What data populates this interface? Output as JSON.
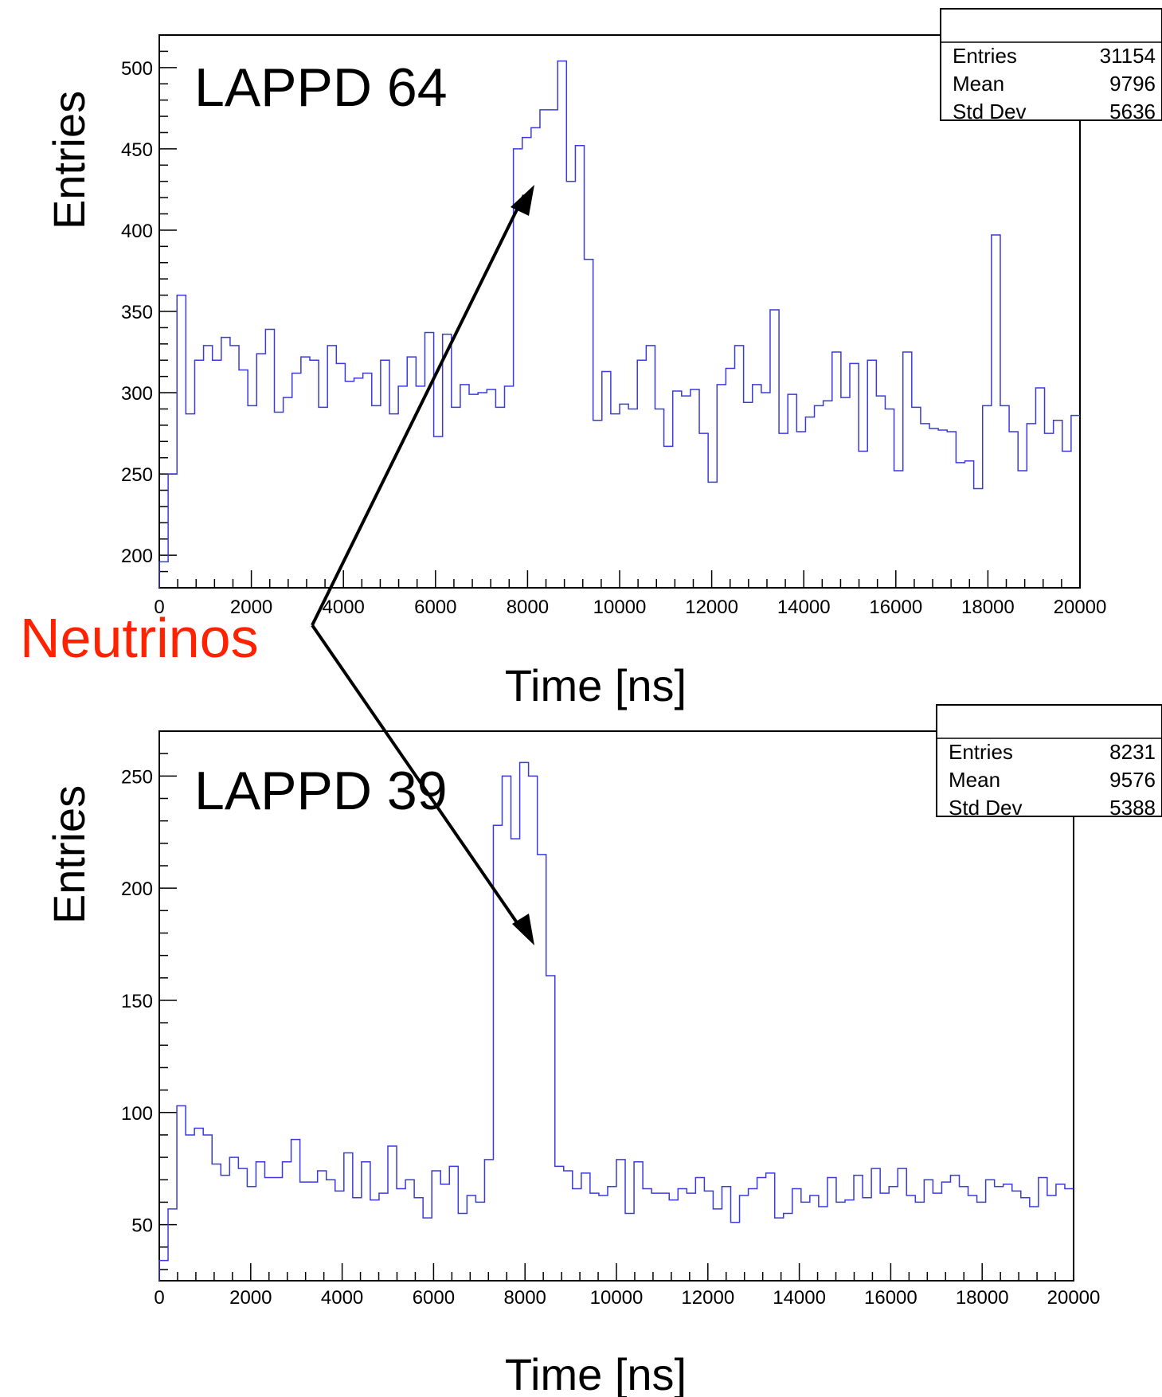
{
  "annotation": {
    "text": "Neutrinos",
    "color": "#ff2200"
  },
  "colors": {
    "histogram": "#3a3adf",
    "axis": "#000000",
    "arrow": "#000000"
  },
  "chart_data": [
    {
      "type": "bar",
      "histogram_style": "step",
      "title": "LAPPD 64",
      "xlabel": "Time [ns]",
      "ylabel": "Entries",
      "xlim": [
        0,
        20000
      ],
      "ylim": [
        180,
        520
      ],
      "x_ticks": [
        0,
        2000,
        4000,
        6000,
        8000,
        10000,
        12000,
        14000,
        16000,
        18000,
        20000
      ],
      "x_tick_labels": [
        "0",
        "2000",
        "4000",
        "6000",
        "8000",
        "10000",
        "12000",
        "14000",
        "16000",
        "18000",
        "20000"
      ],
      "y_ticks": [
        200,
        250,
        300,
        350,
        400,
        450,
        500
      ],
      "y_tick_labels": [
        "200",
        "250",
        "300",
        "350",
        "400",
        "450",
        "500"
      ],
      "bin_width": 200,
      "values": [
        196,
        250,
        360,
        287,
        320,
        329,
        320,
        334,
        329,
        314,
        292,
        324,
        339,
        288,
        297,
        312,
        322,
        320,
        291,
        329,
        318,
        307,
        309,
        312,
        292,
        320,
        287,
        304,
        322,
        304,
        337,
        273,
        336,
        291,
        305,
        299,
        300,
        302,
        291,
        304,
        450,
        457,
        463,
        474,
        474,
        504,
        430,
        452,
        382,
        283,
        313,
        287,
        293,
        290,
        320,
        329,
        290,
        267,
        301,
        298,
        302,
        275,
        245,
        305,
        315,
        329,
        294,
        305,
        300,
        351,
        275,
        299,
        276,
        285,
        292,
        295,
        325,
        297,
        318,
        264,
        320,
        298,
        290,
        252,
        325,
        291,
        281,
        278,
        277,
        276,
        257,
        258,
        241,
        292,
        397,
        292,
        276,
        252,
        281,
        303,
        275,
        283,
        264,
        286
      ],
      "stats": {
        "header": "",
        "labels": [
          "Entries",
          "Mean",
          "Std Dev"
        ],
        "values": [
          "31154",
          "9796",
          "5636"
        ]
      }
    },
    {
      "type": "bar",
      "histogram_style": "step",
      "title": "LAPPD 39",
      "xlabel": "Time [ns]",
      "ylabel": "Entries",
      "xlim": [
        0,
        20000
      ],
      "ylim": [
        25,
        270
      ],
      "x_ticks": [
        0,
        2000,
        4000,
        6000,
        8000,
        10000,
        12000,
        14000,
        16000,
        18000,
        20000
      ],
      "x_tick_labels": [
        "0",
        "2000",
        "4000",
        "6000",
        "8000",
        "10000",
        "12000",
        "14000",
        "16000",
        "18000",
        "20000"
      ],
      "y_ticks": [
        50,
        100,
        150,
        200,
        250
      ],
      "y_tick_labels": [
        "50",
        "100",
        "150",
        "200",
        "250"
      ],
      "bin_width": 200,
      "values": [
        34,
        57,
        103,
        90,
        93,
        90,
        77,
        72,
        80,
        75,
        67,
        78,
        71,
        71,
        78,
        88,
        69,
        69,
        74,
        70,
        65,
        82,
        62,
        78,
        61,
        64,
        85,
        66,
        70,
        62,
        53,
        74,
        68,
        76,
        55,
        63,
        60,
        79,
        228,
        250,
        222,
        256,
        250,
        215,
        161,
        76,
        74,
        66,
        73,
        64,
        63,
        67,
        79,
        55,
        78,
        66,
        64,
        64,
        61,
        66,
        64,
        71,
        65,
        57,
        67,
        51,
        63,
        66,
        71,
        73,
        53,
        55,
        66,
        60,
        63,
        58,
        71,
        60,
        61,
        72,
        62,
        75,
        64,
        67,
        75,
        63,
        60,
        70,
        64,
        69,
        72,
        67,
        63,
        60,
        70,
        67,
        68,
        65,
        62,
        58,
        71,
        63,
        68,
        66
      ],
      "stats": {
        "header": "",
        "labels": [
          "Entries",
          "Mean",
          "Std Dev"
        ],
        "values": [
          "8231",
          "9576",
          "5388"
        ]
      }
    }
  ]
}
